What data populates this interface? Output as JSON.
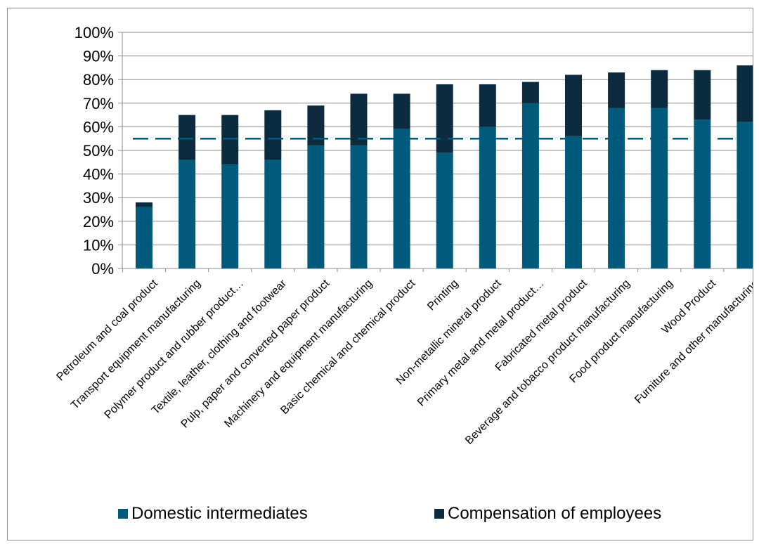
{
  "chart_data": {
    "type": "bar",
    "stacked": true,
    "categories": [
      "Petroleum and coal product",
      "Transport equipment manufacturing",
      "Polymer product and rubber product…",
      "Textile, leather, clothing and footwear",
      "Pulp, paper and converted paper product",
      "Machinery and equipment manufacturing",
      "Basic chemical and chemical product",
      "Printing",
      "Non-metallic mineral product",
      "Primary metal and metal product…",
      "Fabricated metal product",
      "Beverage and tobacco product manufacturing",
      "Food product manufacturing",
      "Wood Product",
      "Furniture and other manufacturing"
    ],
    "series": [
      {
        "name": "Domestic intermediates",
        "color": "#005a7a",
        "values": [
          26,
          46,
          44,
          46,
          52,
          52,
          59,
          49,
          60,
          70,
          56,
          68,
          68,
          63,
          62
        ]
      },
      {
        "name": "Compensation of employees",
        "color": "#0c2b3e",
        "values": [
          2,
          19,
          21,
          21,
          17,
          22,
          15,
          29,
          18,
          9,
          26,
          15,
          16,
          21,
          24
        ]
      }
    ],
    "reference_line": {
      "value": 55,
      "style": "dashed",
      "color": "#005a7a"
    },
    "yticks": [
      "0%",
      "10%",
      "20%",
      "30%",
      "40%",
      "50%",
      "60%",
      "70%",
      "80%",
      "90%",
      "100%"
    ],
    "ylim": [
      0,
      100
    ],
    "yunit": "%",
    "grid": true,
    "legend": "bottom",
    "title": "",
    "xlabel": "",
    "ylabel": ""
  }
}
